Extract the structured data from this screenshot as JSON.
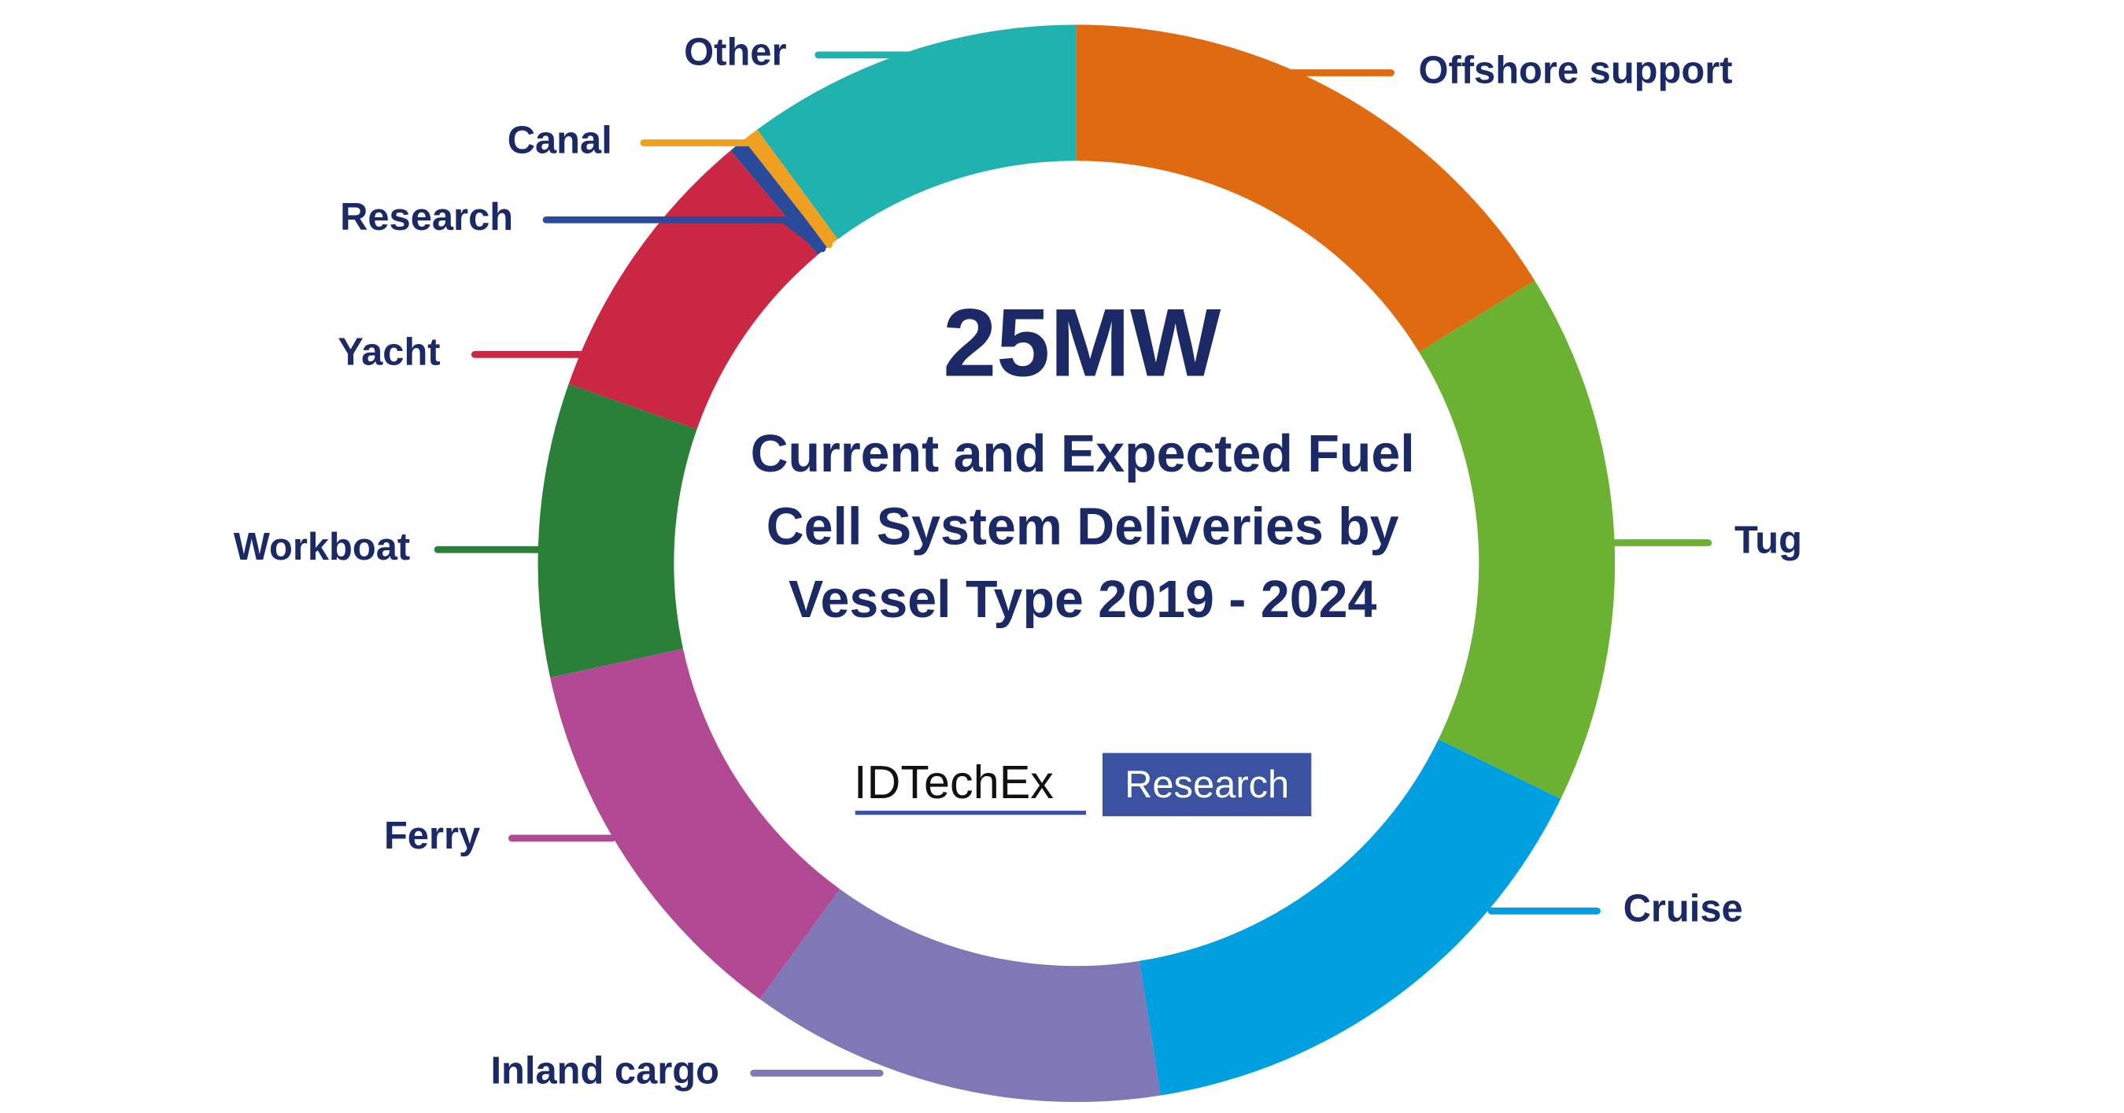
{
  "chart_data": {
    "type": "donut",
    "center_value": "25MW",
    "title": "Current and Expected Fuel Cell System Deliveries by Vessel Type 2019 - 2024",
    "brand": "IDTechEx",
    "brand_tag": "Research",
    "categories": [
      "Offshore support",
      "Tug",
      "Cruise",
      "Inland cargo",
      "Ferry",
      "Workboat",
      "Yacht",
      "Research",
      "Canal",
      "Other"
    ],
    "values": [
      16.2,
      16,
      15.3,
      12.5,
      11.6,
      8.8,
      8.5,
      0.5,
      0.5,
      10.1
    ],
    "colors": [
      "#e06a10",
      "#6bb132",
      "#009fe0",
      "#7f78b6",
      "#b14a92",
      "#2a8038",
      "#c92744",
      "#2a4a9a",
      "#f0a020",
      "#20b2ae"
    ]
  }
}
